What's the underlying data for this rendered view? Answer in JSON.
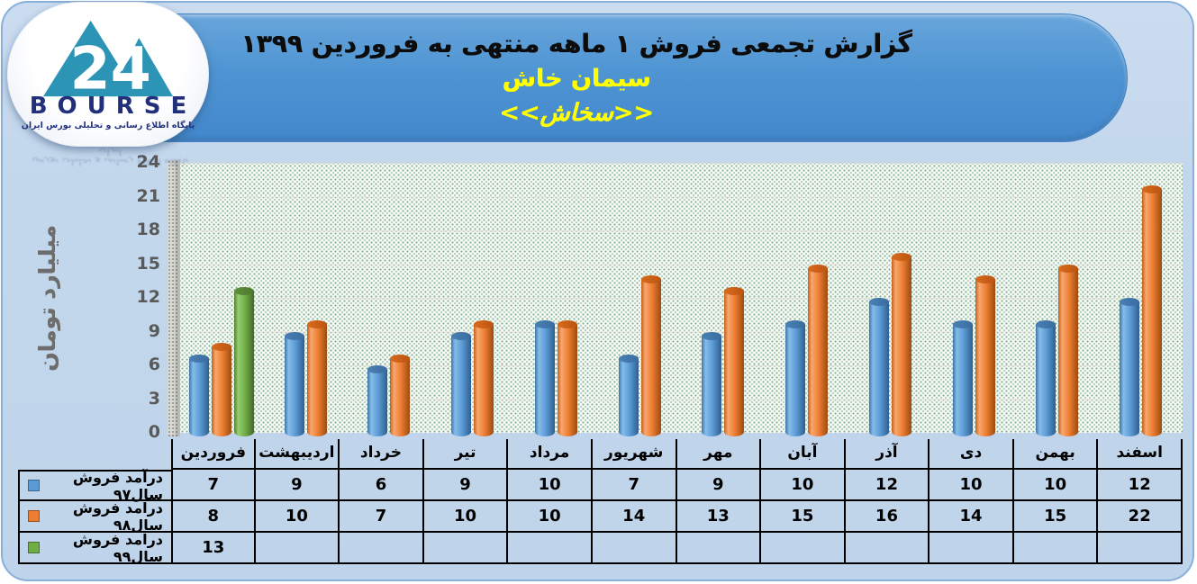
{
  "header": {
    "title": "گزارش تجمعی فروش ۱ ماهه منتهی به فروردین ۱۳۹۹",
    "company": "سیمان خاش",
    "ticker": "<<سخاش>>"
  },
  "logo": {
    "brand": "BOURSE",
    "number": "24",
    "tagline": "پایگاه اطلاع رسانی و تحلیلی بورس ایران"
  },
  "chart_data": {
    "type": "bar",
    "title": "گزارش تجمعی فروش ۱ ماهه منتهی به فروردین ۱۳۹۹ - سیمان خاش (سخاش)",
    "ylabel": "میلیارد تومان",
    "ylim": [
      0,
      24
    ],
    "yticks": [
      0,
      3,
      6,
      9,
      12,
      15,
      18,
      21,
      24
    ],
    "grid": true,
    "legend_position": "table-left",
    "categories": [
      "فروردین",
      "اردیبهشت",
      "خرداد",
      "تیر",
      "مرداد",
      "شهریور",
      "مهر",
      "آبان",
      "آذر",
      "دی",
      "بهمن",
      "اسفند"
    ],
    "series": [
      {
        "name": "درآمد فروش سال۹۷",
        "color": "#5B9BD5",
        "values": [
          7,
          9,
          6,
          9,
          10,
          7,
          9,
          10,
          12,
          10,
          10,
          12
        ]
      },
      {
        "name": "درآمد فروش سال۹۸",
        "color": "#ED7D31",
        "values": [
          8,
          10,
          7,
          10,
          10,
          14,
          13,
          15,
          16,
          14,
          15,
          22
        ]
      },
      {
        "name": "درآمد فروش سال۹۹",
        "color": "#70AD47",
        "values": [
          13,
          null,
          null,
          null,
          null,
          null,
          null,
          null,
          null,
          null,
          null,
          null
        ]
      }
    ]
  }
}
